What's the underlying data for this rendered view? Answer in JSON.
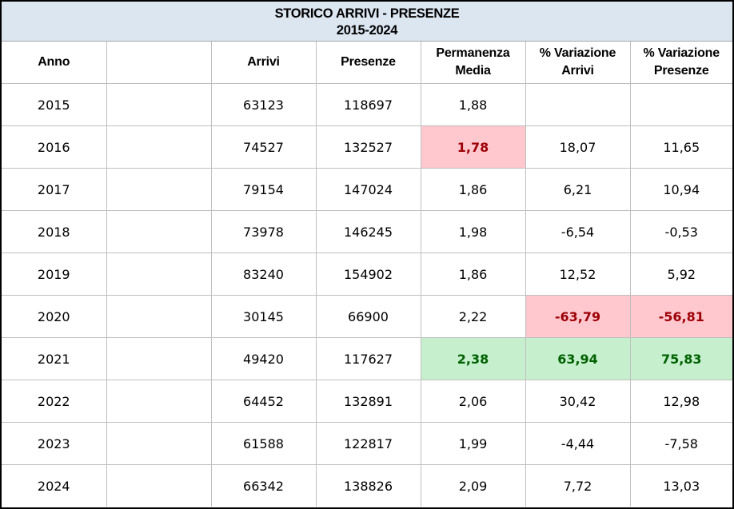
{
  "title": {
    "line1": "STORICO ARRIVI - PRESENZE",
    "line2": "2015-2024"
  },
  "headers": {
    "anno": "Anno",
    "blank": "",
    "arrivi": "Arrivi",
    "presenze": "Presenze",
    "permanenza_line1": "Permanenza",
    "permanenza_line2": "Media",
    "var_arrivi_line1": "% Variazione",
    "var_arrivi_line2": "Arrivi",
    "var_presenze_line1": "% Variazione",
    "var_presenze_line2": "Presenze"
  },
  "highlight_colors": {
    "negative_fill": "#ffc7ce",
    "negative_text": "#9c0006",
    "positive_fill": "#c6efce",
    "positive_text": "#006100",
    "title_fill": "#dce6f1"
  },
  "rows": [
    {
      "anno": "2015",
      "arrivi": "63123",
      "presenze": "118697",
      "permanenza": "1,88",
      "var_arrivi": "",
      "var_presenze": ""
    },
    {
      "anno": "2016",
      "arrivi": "74527",
      "presenze": "132527",
      "permanenza": "1,78",
      "var_arrivi": "18,07",
      "var_presenze": "11,65"
    },
    {
      "anno": "2017",
      "arrivi": "79154",
      "presenze": "147024",
      "permanenza": "1,86",
      "var_arrivi": "6,21",
      "var_presenze": "10,94"
    },
    {
      "anno": "2018",
      "arrivi": "73978",
      "presenze": "146245",
      "permanenza": "1,98",
      "var_arrivi": "-6,54",
      "var_presenze": "-0,53"
    },
    {
      "anno": "2019",
      "arrivi": "83240",
      "presenze": "154902",
      "permanenza": "1,86",
      "var_arrivi": "12,52",
      "var_presenze": "5,92"
    },
    {
      "anno": "2020",
      "arrivi": "30145",
      "presenze": "66900",
      "permanenza": "2,22",
      "var_arrivi": "-63,79",
      "var_presenze": "-56,81"
    },
    {
      "anno": "2021",
      "arrivi": "49420",
      "presenze": "117627",
      "permanenza": "2,38",
      "var_arrivi": "63,94",
      "var_presenze": "75,83"
    },
    {
      "anno": "2022",
      "arrivi": "64452",
      "presenze": "132891",
      "permanenza": "2,06",
      "var_arrivi": "30,42",
      "var_presenze": "12,98"
    },
    {
      "anno": "2023",
      "arrivi": "61588",
      "presenze": "122817",
      "permanenza": "1,99",
      "var_arrivi": "-4,44",
      "var_presenze": "-7,58"
    },
    {
      "anno": "2024",
      "arrivi": "66342",
      "presenze": "138826",
      "permanenza": "2,09",
      "var_arrivi": "7,72",
      "var_presenze": "13,03"
    }
  ]
}
